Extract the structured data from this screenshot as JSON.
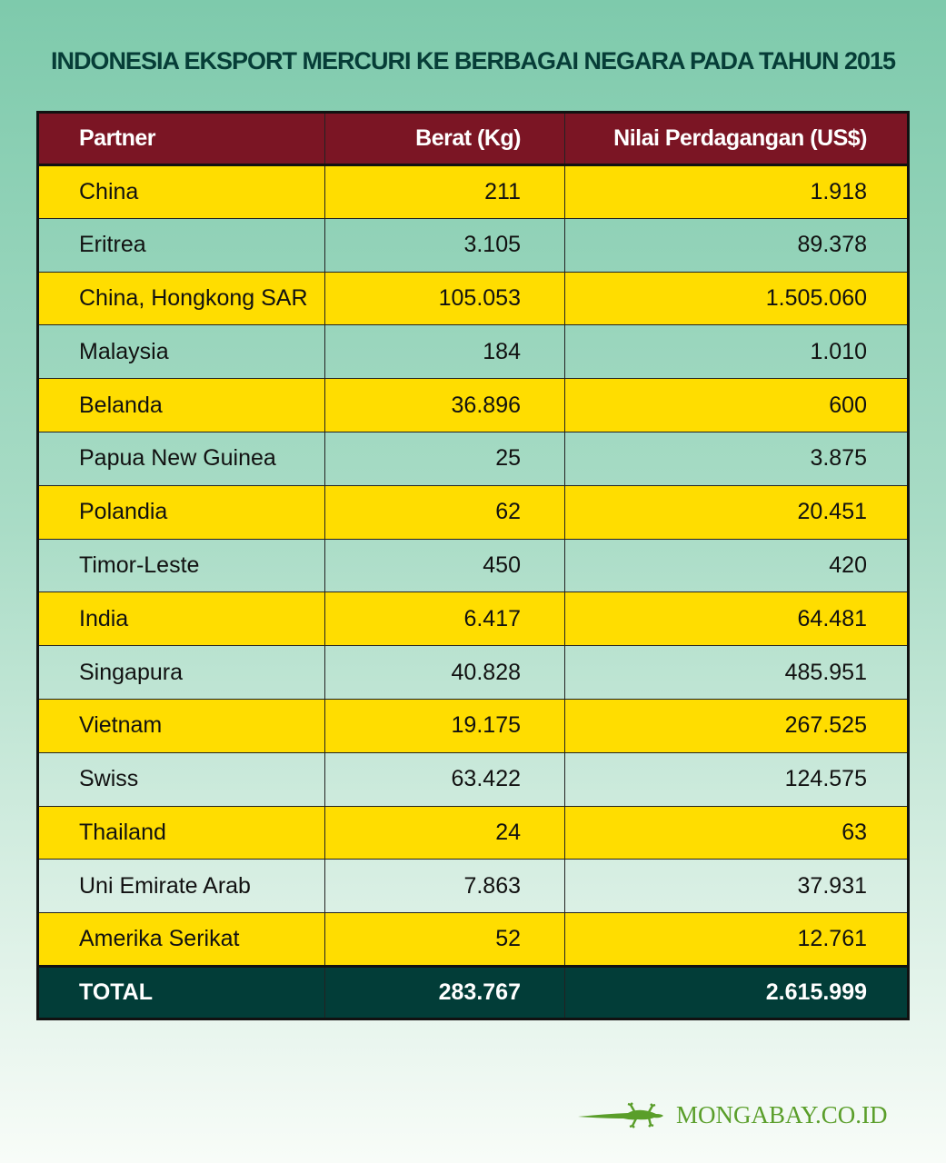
{
  "title": "INDONESIA EKSPORT MERCURI KE BERBAGAI NEGARA PADA TAHUN 2015",
  "colors": {
    "header": "#7b1524",
    "highlight_row": "#ffdd00",
    "total_row": "#023d38",
    "title": "#063d37",
    "logo": "#5a9e2a"
  },
  "chart_data": {
    "type": "table",
    "title": "INDONESIA EKSPORT MERCURI KE BERBAGAI NEGARA PADA TAHUN 2015",
    "columns": [
      "Partner",
      "Berat (Kg)",
      "Nilai Perdagangan (US$)"
    ],
    "rows": [
      [
        "China",
        "211",
        "1.918"
      ],
      [
        "Eritrea",
        "3.105",
        "89.378"
      ],
      [
        "China, Hongkong SAR",
        "105.053",
        "1.505.060"
      ],
      [
        "Malaysia",
        "184",
        "1.010"
      ],
      [
        "Belanda",
        "36.896",
        "600"
      ],
      [
        "Papua New Guinea",
        "25",
        "3.875"
      ],
      [
        "Polandia",
        "62",
        "20.451"
      ],
      [
        "Timor-Leste",
        "450",
        "420"
      ],
      [
        "India",
        "6.417",
        "64.481"
      ],
      [
        "Singapura",
        "40.828",
        "485.951"
      ],
      [
        "Vietnam",
        "19.175",
        "267.525"
      ],
      [
        "Swiss",
        "63.422",
        "124.575"
      ],
      [
        "Thailand",
        "24",
        "63"
      ],
      [
        "Uni Emirate Arab",
        "7.863",
        "37.931"
      ],
      [
        "Amerika Serikat",
        "52",
        "12.761"
      ]
    ],
    "total": [
      "TOTAL",
      "283.767",
      "2.615.999"
    ]
  },
  "logo": {
    "text": "MONGABAY.CO.ID",
    "icon": "gecko-icon"
  }
}
